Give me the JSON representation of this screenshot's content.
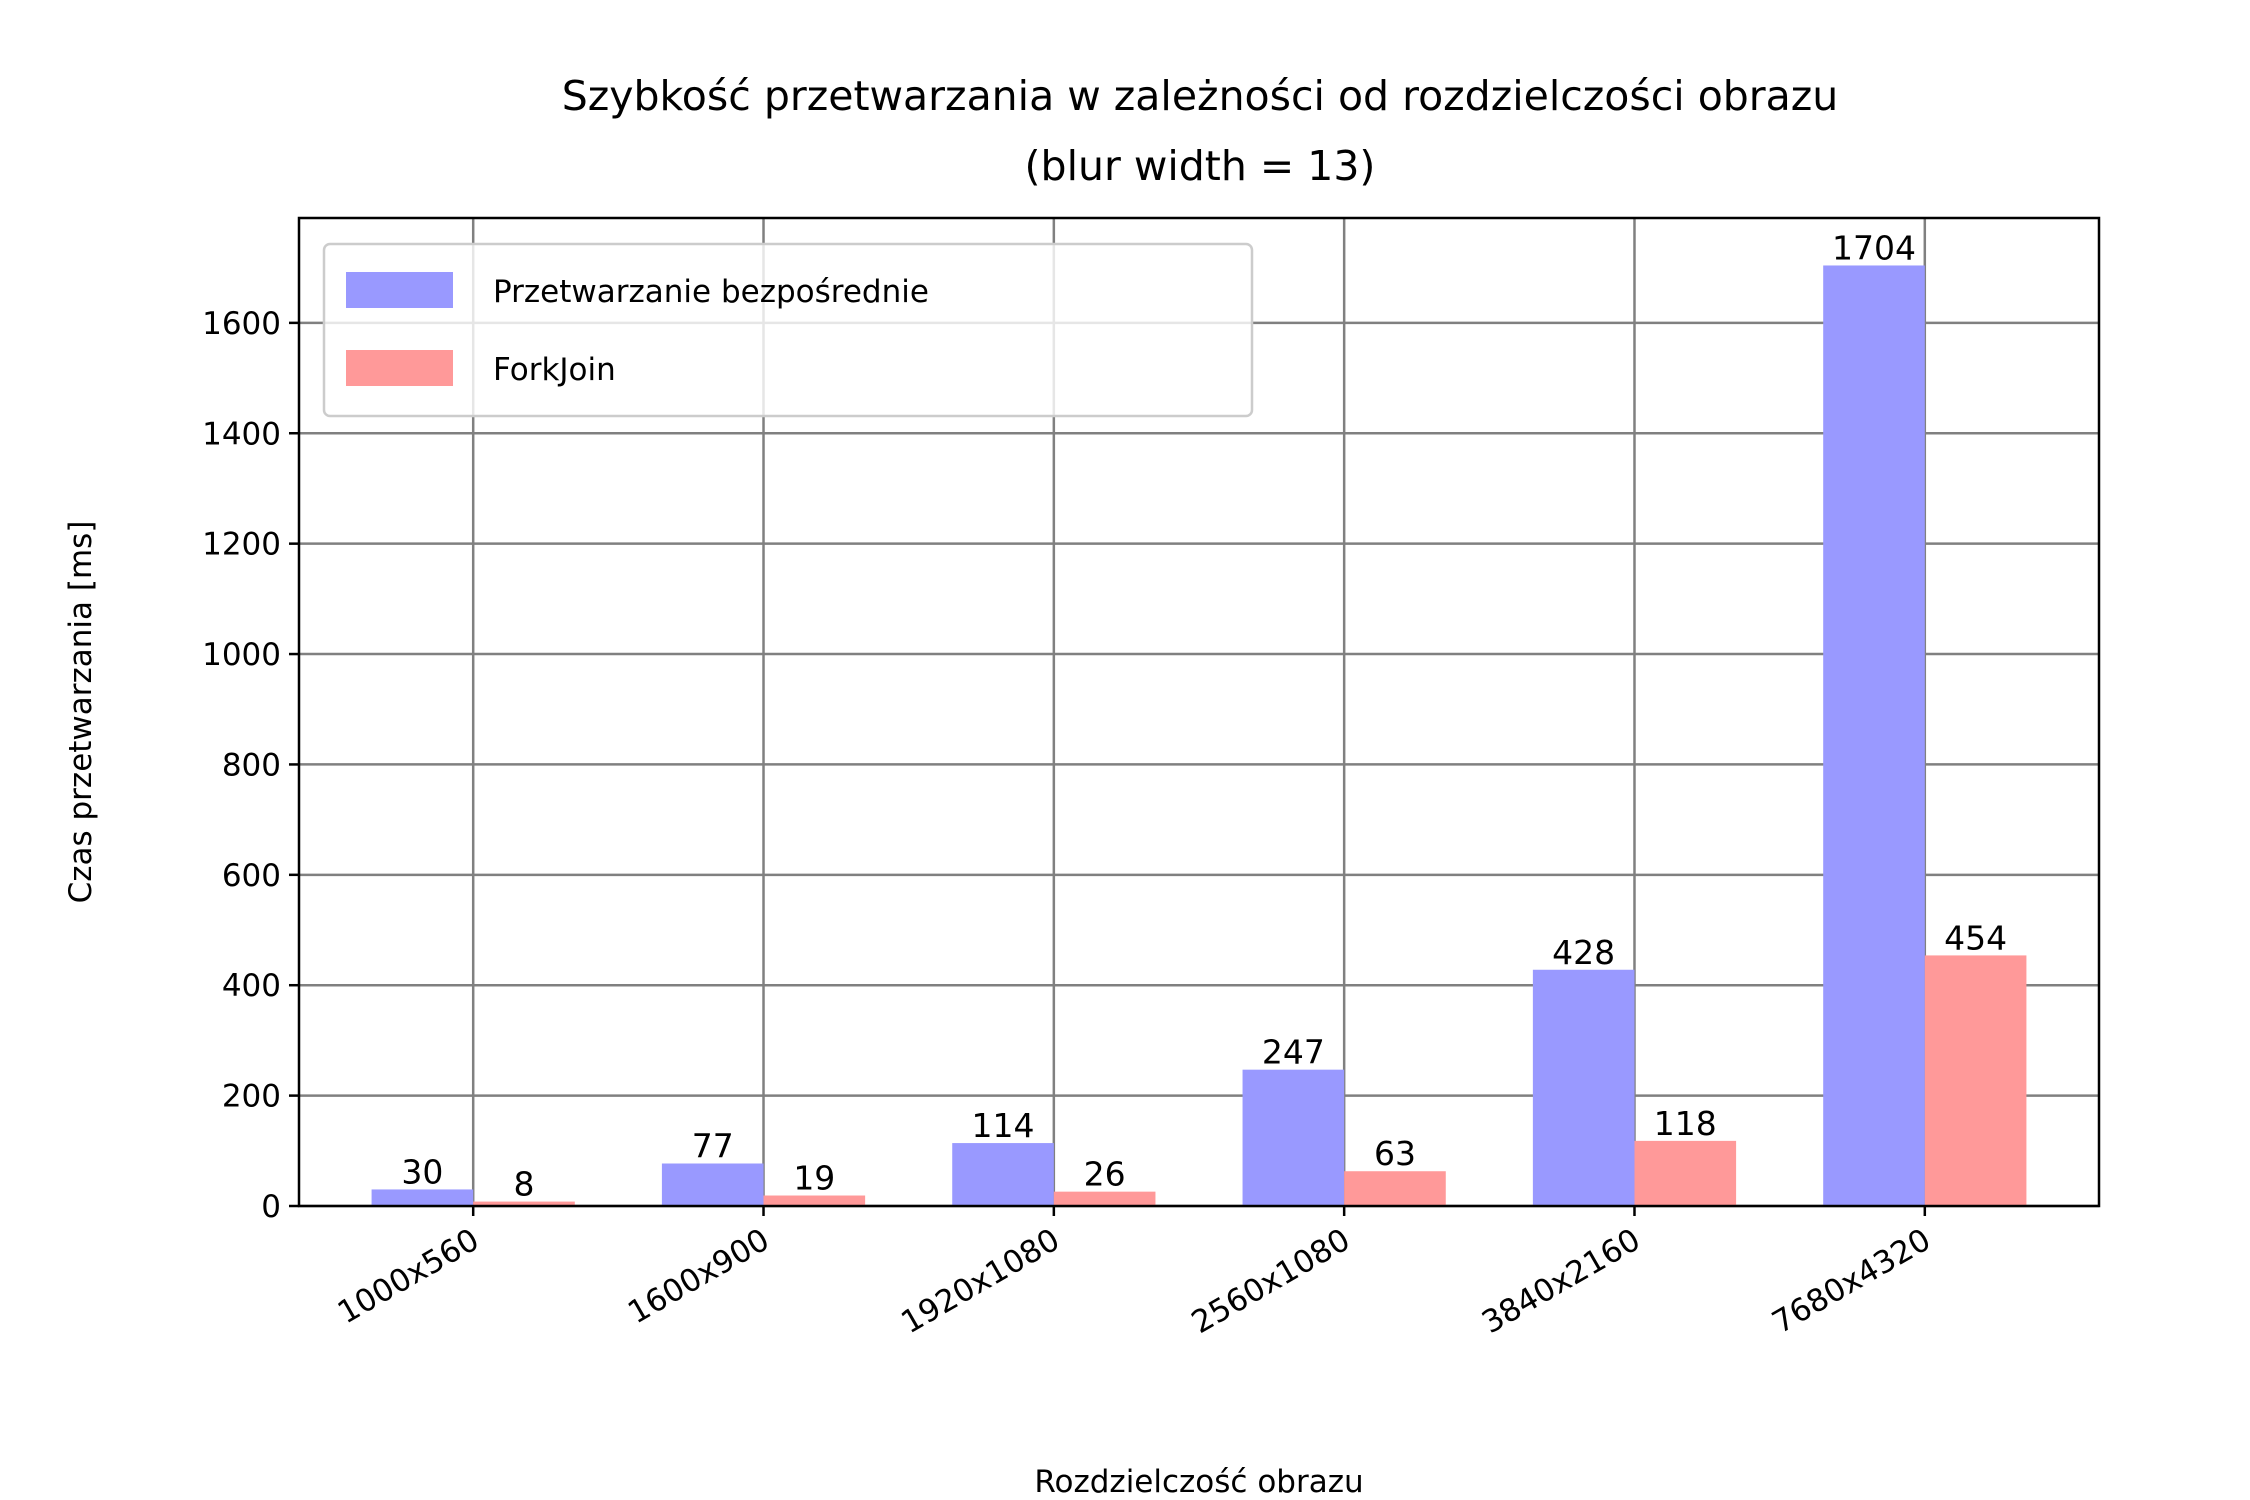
{
  "chart_data": {
    "type": "bar",
    "title": "Szybkość przetwarzania w zależności od rozdzielczości obrazu",
    "subtitle": "(blur width = 13)",
    "xlabel": "Rozdzielczość obrazu",
    "ylabel": "Czas przetwarzania [ms]",
    "categories": [
      "1000x560",
      "1600x900",
      "1920x1080",
      "2560x1080",
      "3840x2160",
      "7680x4320"
    ],
    "series": [
      {
        "name": "Przetwarzanie bezpośrednie",
        "values": [
          30,
          77,
          114,
          247,
          428,
          1704
        ],
        "color": "#9999ff"
      },
      {
        "name": "ForkJoin",
        "values": [
          8,
          19,
          26,
          63,
          118,
          454
        ],
        "color": "#ff9999"
      }
    ],
    "ylim": [
      0,
      1790
    ],
    "yticks": [
      0,
      200,
      400,
      600,
      800,
      1000,
      1200,
      1400,
      1600
    ],
    "grid": true,
    "legend_position": "top-left"
  }
}
